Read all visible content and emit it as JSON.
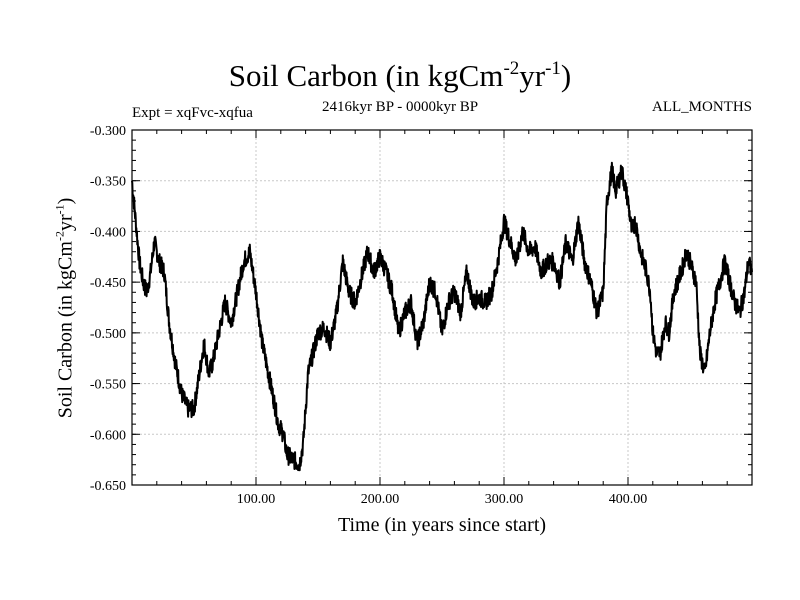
{
  "chart_data": {
    "type": "line",
    "title": {
      "base": "Soil Carbon (in kgCm",
      "exp1": "-2",
      "mid": "yr",
      "exp2": "-1",
      "close": ")"
    },
    "subtitle_left": "Expt = xqFvc-xqfua",
    "subtitle_center": "2416kyr BP - 0000kyr BP",
    "subtitle_right": "ALL_MONTHS",
    "xlabel": "Time (in years since start)",
    "ylabel": {
      "base": "Soil Carbon (in kgCm",
      "exp1": "-2",
      "mid": "yr",
      "exp2": "-1",
      "close": ")"
    },
    "xlim": [
      0,
      500
    ],
    "ylim": [
      -0.65,
      -0.3
    ],
    "xticks": [
      100,
      200,
      300,
      400
    ],
    "xtick_labels": [
      "100.00",
      "200.00",
      "300.00",
      "400.00"
    ],
    "yticks": [
      -0.3,
      -0.35,
      -0.4,
      -0.45,
      -0.5,
      -0.55,
      -0.6,
      -0.65
    ],
    "ytick_labels": [
      "-0.300",
      "-0.350",
      "-0.400",
      "-0.450",
      "-0.500",
      "-0.550",
      "-0.600",
      "-0.650"
    ],
    "series": [
      {
        "name": "Soil Carbon",
        "color": "#000000",
        "x": [
          0,
          3,
          6,
          9,
          12,
          15,
          18,
          22,
          26,
          30,
          35,
          40,
          45,
          50,
          55,
          58,
          62,
          65,
          70,
          75,
          80,
          85,
          90,
          95,
          100,
          105,
          110,
          115,
          118,
          122,
          125,
          130,
          135,
          138,
          142,
          146,
          150,
          155,
          160,
          165,
          170,
          175,
          180,
          185,
          190,
          195,
          200,
          205,
          210,
          215,
          220,
          225,
          230,
          235,
          240,
          245,
          250,
          255,
          260,
          265,
          270,
          275,
          280,
          285,
          290,
          295,
          300,
          305,
          310,
          315,
          320,
          325,
          330,
          335,
          340,
          345,
          350,
          355,
          360,
          365,
          370,
          375,
          380,
          383,
          387,
          390,
          395,
          400,
          403,
          406,
          410,
          415,
          418,
          420,
          423,
          426,
          430,
          433,
          437,
          440,
          444,
          447,
          450,
          455,
          458,
          462,
          466,
          470,
          474,
          478,
          482,
          486,
          490,
          494,
          497,
          500
        ],
        "y": [
          -0.35,
          -0.39,
          -0.43,
          -0.45,
          -0.46,
          -0.44,
          -0.41,
          -0.43,
          -0.44,
          -0.49,
          -0.53,
          -0.56,
          -0.575,
          -0.575,
          -0.535,
          -0.51,
          -0.54,
          -0.53,
          -0.5,
          -0.47,
          -0.49,
          -0.46,
          -0.43,
          -0.42,
          -0.46,
          -0.51,
          -0.54,
          -0.57,
          -0.59,
          -0.6,
          -0.62,
          -0.625,
          -0.63,
          -0.61,
          -0.54,
          -0.52,
          -0.5,
          -0.495,
          -0.51,
          -0.48,
          -0.43,
          -0.46,
          -0.47,
          -0.445,
          -0.42,
          -0.44,
          -0.425,
          -0.44,
          -0.46,
          -0.5,
          -0.48,
          -0.47,
          -0.51,
          -0.49,
          -0.45,
          -0.46,
          -0.5,
          -0.47,
          -0.46,
          -0.48,
          -0.44,
          -0.47,
          -0.465,
          -0.47,
          -0.46,
          -0.43,
          -0.39,
          -0.41,
          -0.43,
          -0.4,
          -0.42,
          -0.415,
          -0.44,
          -0.43,
          -0.43,
          -0.45,
          -0.41,
          -0.43,
          -0.39,
          -0.43,
          -0.45,
          -0.48,
          -0.46,
          -0.37,
          -0.34,
          -0.36,
          -0.34,
          -0.37,
          -0.4,
          -0.39,
          -0.42,
          -0.44,
          -0.46,
          -0.5,
          -0.52,
          -0.52,
          -0.49,
          -0.5,
          -0.46,
          -0.45,
          -0.435,
          -0.42,
          -0.43,
          -0.45,
          -0.52,
          -0.54,
          -0.5,
          -0.47,
          -0.45,
          -0.43,
          -0.45,
          -0.47,
          -0.48,
          -0.46,
          -0.43,
          -0.44
        ]
      }
    ]
  }
}
